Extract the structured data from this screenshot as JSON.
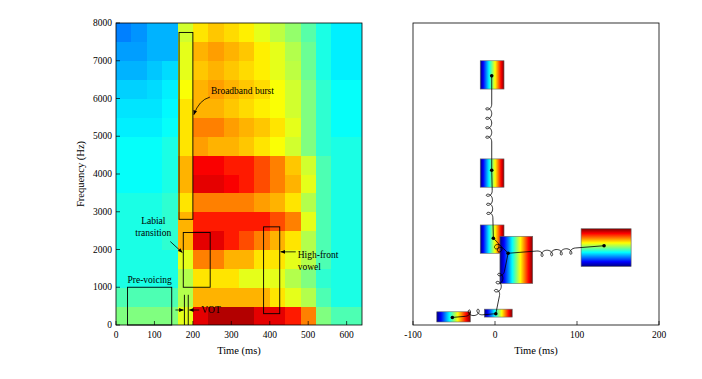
{
  "chart_data": [
    {
      "type": "heatmap",
      "xlabel": "Time (ms)",
      "ylabel": "Frequency (Hz)",
      "xlim": [
        0,
        640
      ],
      "ylim": [
        0,
        8000
      ],
      "xticks": [
        0,
        100,
        200,
        300,
        400,
        500,
        600
      ],
      "yticks": [
        0,
        1000,
        2000,
        3000,
        4000,
        5000,
        6000,
        7000,
        8000
      ],
      "x_bins": [
        0,
        40,
        80,
        120,
        160,
        200,
        240,
        280,
        320,
        360,
        400,
        440,
        480,
        520,
        560,
        600,
        640
      ],
      "y_bins": [
        0,
        500,
        1000,
        1500,
        2000,
        2500,
        3000,
        3500,
        4000,
        4500,
        5000,
        5500,
        6000,
        6500,
        7000,
        7500,
        8000
      ],
      "color_range": [
        0,
        1
      ],
      "cells": [
        [
          0.5,
          0.5,
          0.5,
          0.5,
          0.6,
          0.9,
          0.95,
          0.95,
          0.95,
          0.9,
          0.9,
          0.85,
          0.75,
          0.5,
          0.45,
          0.45
        ],
        [
          0.45,
          0.45,
          0.45,
          0.45,
          0.55,
          0.7,
          0.7,
          0.7,
          0.7,
          0.7,
          0.65,
          0.6,
          0.55,
          0.45,
          0.4,
          0.4
        ],
        [
          0.4,
          0.4,
          0.4,
          0.4,
          0.55,
          0.65,
          0.65,
          0.65,
          0.6,
          0.6,
          0.6,
          0.55,
          0.5,
          0.42,
          0.4,
          0.4
        ],
        [
          0.4,
          0.4,
          0.4,
          0.4,
          0.6,
          0.75,
          0.75,
          0.7,
          0.7,
          0.65,
          0.65,
          0.6,
          0.55,
          0.45,
          0.4,
          0.4
        ],
        [
          0.4,
          0.4,
          0.4,
          0.42,
          0.7,
          0.9,
          0.9,
          0.85,
          0.8,
          0.75,
          0.7,
          0.65,
          0.55,
          0.45,
          0.4,
          0.4
        ],
        [
          0.4,
          0.4,
          0.4,
          0.42,
          0.7,
          0.85,
          0.85,
          0.85,
          0.85,
          0.85,
          0.8,
          0.75,
          0.6,
          0.45,
          0.4,
          0.4
        ],
        [
          0.4,
          0.4,
          0.4,
          0.42,
          0.65,
          0.75,
          0.75,
          0.75,
          0.75,
          0.72,
          0.7,
          0.65,
          0.55,
          0.45,
          0.4,
          0.4
        ],
        [
          0.38,
          0.38,
          0.38,
          0.4,
          0.7,
          0.9,
          0.9,
          0.88,
          0.85,
          0.8,
          0.75,
          0.7,
          0.6,
          0.45,
          0.4,
          0.4
        ],
        [
          0.38,
          0.38,
          0.38,
          0.4,
          0.7,
          0.88,
          0.88,
          0.85,
          0.85,
          0.8,
          0.75,
          0.68,
          0.58,
          0.45,
          0.4,
          0.4
        ],
        [
          0.38,
          0.38,
          0.38,
          0.4,
          0.65,
          0.72,
          0.7,
          0.7,
          0.68,
          0.65,
          0.62,
          0.58,
          0.5,
          0.42,
          0.4,
          0.4
        ],
        [
          0.36,
          0.36,
          0.36,
          0.38,
          0.65,
          0.75,
          0.75,
          0.72,
          0.7,
          0.68,
          0.65,
          0.6,
          0.5,
          0.42,
          0.38,
          0.38
        ],
        [
          0.35,
          0.35,
          0.35,
          0.37,
          0.65,
          0.7,
          0.7,
          0.68,
          0.66,
          0.64,
          0.62,
          0.58,
          0.5,
          0.42,
          0.38,
          0.38
        ],
        [
          0.33,
          0.33,
          0.34,
          0.36,
          0.62,
          0.7,
          0.72,
          0.7,
          0.68,
          0.66,
          0.62,
          0.58,
          0.5,
          0.42,
          0.38,
          0.38
        ],
        [
          0.3,
          0.3,
          0.32,
          0.34,
          0.6,
          0.68,
          0.7,
          0.68,
          0.66,
          0.64,
          0.6,
          0.56,
          0.48,
          0.4,
          0.36,
          0.36
        ],
        [
          0.28,
          0.28,
          0.3,
          0.3,
          0.6,
          0.7,
          0.72,
          0.7,
          0.68,
          0.64,
          0.6,
          0.55,
          0.48,
          0.4,
          0.36,
          0.36
        ],
        [
          0.25,
          0.27,
          0.3,
          0.3,
          0.58,
          0.65,
          0.68,
          0.66,
          0.64,
          0.6,
          0.56,
          0.52,
          0.46,
          0.4,
          0.36,
          0.36
        ]
      ],
      "annotations": [
        {
          "text": "Broadband burst",
          "x": [
            164,
            200
          ],
          "y": [
            2800,
            7750
          ]
        },
        {
          "text": "Labial transition",
          "x": [
            175,
            245
          ],
          "y": [
            1000,
            2450
          ]
        },
        {
          "text": "High-front vowel",
          "x": [
            384,
            426
          ],
          "y": [
            300,
            2600
          ]
        },
        {
          "text": "Pre-voicing",
          "x": [
            30,
            145
          ],
          "y": [
            0,
            1000
          ]
        },
        {
          "text": "VOT",
          "x": [
            178,
            188
          ],
          "y": [
            0,
            800
          ]
        }
      ]
    },
    {
      "type": "network",
      "xlabel": "Time (ms)",
      "xlim": [
        -100,
        200
      ],
      "ylim": [
        0,
        8000
      ],
      "xticks": [
        -100,
        0,
        100,
        200
      ],
      "tick_labels": "x",
      "nodes": [
        {
          "x": -4,
          "y": 6600,
          "box_x": [
            -18,
            11
          ],
          "box_y": [
            6250,
            7000
          ]
        },
        {
          "x": -4,
          "y": 4100,
          "box_x": [
            -18,
            11
          ],
          "box_y": [
            3650,
            4400
          ]
        },
        {
          "x": -2,
          "y": 2300,
          "box_x": [
            -18,
            11
          ],
          "box_y": [
            1900,
            2650
          ]
        },
        {
          "x": 16,
          "y": 1900,
          "box_x": [
            6,
            46
          ],
          "box_y": [
            1100,
            2350
          ]
        },
        {
          "x": 133,
          "y": 2100,
          "box_x": [
            105,
            166
          ],
          "box_y": [
            1550,
            2550
          ]
        },
        {
          "x": 1,
          "y": 300,
          "box_x": [
            -13,
            21
          ],
          "box_y": [
            210,
            420
          ]
        },
        {
          "x": -52,
          "y": 200,
          "box_x": [
            -71,
            -30
          ],
          "box_y": [
            80,
            350
          ]
        }
      ],
      "edges": [
        [
          0,
          1
        ],
        [
          1,
          2
        ],
        [
          2,
          3
        ],
        [
          3,
          4
        ],
        [
          3,
          5
        ],
        [
          5,
          6
        ]
      ]
    }
  ]
}
